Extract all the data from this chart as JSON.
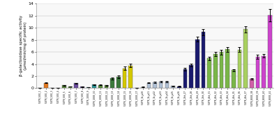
{
  "ylabel": "β-galactosidase specific activity\n(µmol/min/mg of protein)",
  "ylim": [
    0,
    14
  ],
  "yticks": [
    0,
    2,
    4,
    6,
    8,
    10,
    12,
    14
  ],
  "figsize": [
    4.0,
    1.82
  ],
  "dpi": 100,
  "bars": [
    {
      "label": "5'UTR_500_1",
      "value": 0.05,
      "error": 0.02,
      "color": "#c8c8c8"
    },
    {
      "label": "5'UTR_500_2",
      "value": 0.9,
      "error": 0.1,
      "color": "#e07820"
    },
    {
      "label": "5'UTR_500_3",
      "value": 0.05,
      "error": 0.02,
      "color": "#c8c8c8"
    },
    {
      "label": "5'UTR_500_4",
      "value": 0.07,
      "error": 0.02,
      "color": "#c8c8c8"
    },
    {
      "label": "5'UTR_500_5",
      "value": 0.48,
      "error": 0.05,
      "color": "#5a8a3c"
    },
    {
      "label": "5'UTR_500_6",
      "value": 0.28,
      "error": 0.04,
      "color": "#5a8a3c"
    },
    {
      "label": "5'UTR_500_7",
      "value": 0.82,
      "error": 0.08,
      "color": "#6a4c9c"
    },
    {
      "label": "5'UTR_500_8",
      "value": 0.22,
      "error": 0.03,
      "color": "#6a4c9c"
    },
    {
      "label": "5'UTR_1000_9",
      "value": 0.18,
      "error": 0.03,
      "color": "#2a9494"
    },
    {
      "label": "5'UTR_1000_10",
      "value": 0.58,
      "error": 0.06,
      "color": "#2a9494"
    },
    {
      "label": "5'UTR_1000_11",
      "value": 0.52,
      "error": 0.05,
      "color": "#5a8a3c"
    },
    {
      "label": "5'UTR_1000_12",
      "value": 0.48,
      "error": 0.05,
      "color": "#5a8a3c"
    },
    {
      "label": "5'UTR_1000_13",
      "value": 1.6,
      "error": 0.15,
      "color": "#3a7a3a"
    },
    {
      "label": "5'UTR_1000_14",
      "value": 1.88,
      "error": 0.2,
      "color": "#3a7a3a"
    },
    {
      "label": "5'UTR_1000_15",
      "value": 3.3,
      "error": 0.25,
      "color": "#d4c800"
    },
    {
      "label": "5'UTR_1000_16",
      "value": 3.75,
      "error": 0.3,
      "color": "#d4c800"
    },
    {
      "label": "5'UTR_1000_17",
      "value": 0.05,
      "error": 0.02,
      "color": "#c8c8c8"
    },
    {
      "label": "5'UTR_1k_p20",
      "value": 0.2,
      "error": 0.03,
      "color": "#c8c8c8"
    },
    {
      "label": "5'UTR_1k_p21",
      "value": 0.88,
      "error": 0.08,
      "color": "#b0c0d4"
    },
    {
      "label": "5'UTR_1k_p22",
      "value": 1.0,
      "error": 0.1,
      "color": "#b0c0d4"
    },
    {
      "label": "5'UTR_1k_p23",
      "value": 1.05,
      "error": 0.1,
      "color": "#b0c0d4"
    },
    {
      "label": "5'UTR_1k_p24",
      "value": 1.08,
      "error": 0.1,
      "color": "#b0c0d4"
    },
    {
      "label": "5'UTR_1k_p25",
      "value": 0.38,
      "error": 0.05,
      "color": "#b0c0d4"
    },
    {
      "label": "5'UTR_1k_p26",
      "value": 0.32,
      "error": 0.05,
      "color": "#1a1a6e"
    },
    {
      "label": "5'UTR_2kh_27",
      "value": 3.15,
      "error": 0.2,
      "color": "#1a1a6e"
    },
    {
      "label": "5'UTR_2kh_28",
      "value": 3.85,
      "error": 0.25,
      "color": "#1a1a6e"
    },
    {
      "label": "5'UTR_2kh_29",
      "value": 8.1,
      "error": 0.4,
      "color": "#1a1a6e"
    },
    {
      "label": "5'UTR_2kh_30",
      "value": 9.3,
      "error": 0.5,
      "color": "#1a1a6e"
    },
    {
      "label": "5'UTR_4kh_31",
      "value": 4.95,
      "error": 0.3,
      "color": "#7ab648"
    },
    {
      "label": "5'UTR_4kh_32",
      "value": 5.7,
      "error": 0.35,
      "color": "#7ab648"
    },
    {
      "label": "5'UTR_4kh_33",
      "value": 6.0,
      "error": 0.4,
      "color": "#7ab648"
    },
    {
      "label": "5'UTR_4kh_34",
      "value": 6.45,
      "error": 0.4,
      "color": "#7ab648"
    },
    {
      "label": "5'UTR_4kh_35",
      "value": 3.0,
      "error": 0.2,
      "color": "#7ab648"
    },
    {
      "label": "5'UTR_4kh_36",
      "value": 6.4,
      "error": 0.4,
      "color": "#a8d060"
    },
    {
      "label": "5'UTR_4kh_37",
      "value": 9.75,
      "error": 0.5,
      "color": "#a8d060"
    },
    {
      "label": "5'UTR_8000_38",
      "value": 1.55,
      "error": 0.15,
      "color": "#d060a8"
    },
    {
      "label": "5'UTR_8000_39",
      "value": 5.2,
      "error": 0.3,
      "color": "#cc44cc"
    },
    {
      "label": "5'UTR_8000_40",
      "value": 5.35,
      "error": 0.3,
      "color": "#cc44cc"
    },
    {
      "label": "5'UTR_8000_41",
      "value": 12.1,
      "error": 1.0,
      "color": "#cc44cc"
    }
  ]
}
